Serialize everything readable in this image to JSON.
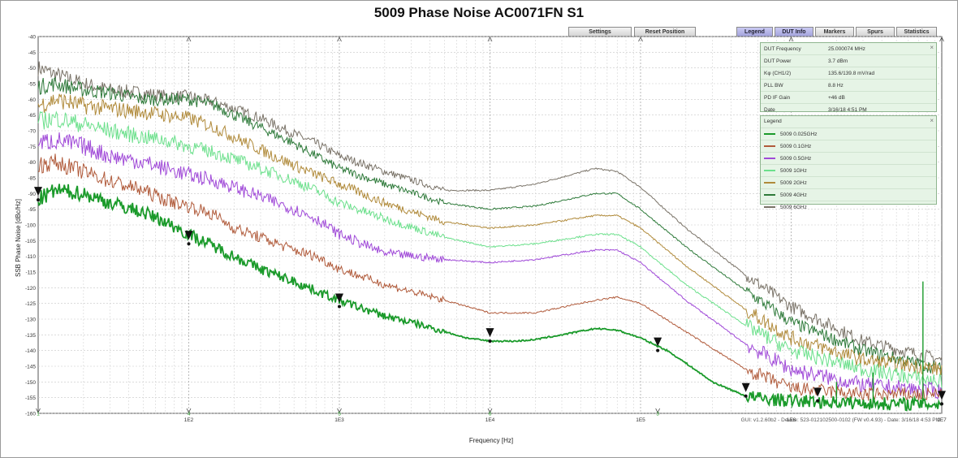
{
  "toolbar": {
    "buttons": [
      "Settings",
      "Reset Position",
      "Legend",
      "DUT Info",
      "Markers",
      "Spurs",
      "Statistics"
    ],
    "active": [
      "Legend",
      "DUT Info"
    ]
  },
  "dut_info": {
    "rows": [
      {
        "key": "DUT Frequency",
        "value": "25.000074 MHz"
      },
      {
        "key": "DUT Power",
        "value": "3.7 dBm"
      },
      {
        "key": "Kφ (CH1/2)",
        "value": "135.6/139.8 mV/rad"
      },
      {
        "key": "PLL BW",
        "value": "8.8 Hz"
      },
      {
        "key": "PD IF Gain",
        "value": "+46 dB"
      },
      {
        "key": "Date",
        "value": "3/16/18 4:51 PM"
      }
    ],
    "close": "×"
  },
  "legend_panel": {
    "title": "Legend",
    "close": "×"
  },
  "footer": "GUI: v1.2.60b2 - Device: 523-012102500-0102 (FW v0.4.93) - Date: 3/16/18 4:53 PM",
  "chart_data": {
    "type": "line",
    "title": "5009 Phase Noise  AC0071FN S1",
    "xlabel": "Frequency [Hz]",
    "ylabel": "SSB Phase Noise [dBc/Hz]",
    "x_scale": "log",
    "xlim": [
      10,
      10000000
    ],
    "ylim": [
      -160,
      -40
    ],
    "x_ticks": [
      {
        "value": 100,
        "label": "1E2"
      },
      {
        "value": 1000,
        "label": "1E3"
      },
      {
        "value": 10000,
        "label": "1E4"
      },
      {
        "value": 100000,
        "label": "1E5"
      },
      {
        "value": 1000000,
        "label": "1E6"
      },
      {
        "value": 10000000,
        "label": "1E7"
      }
    ],
    "y_ticks": [
      -40,
      -45,
      -50,
      -55,
      -60,
      -65,
      -70,
      -75,
      -80,
      -85,
      -90,
      -95,
      -100,
      -105,
      -110,
      -115,
      -120,
      -125,
      -130,
      -135,
      -140,
      -145,
      -150,
      -155,
      -160
    ],
    "grid": true,
    "legend_position": "top-right",
    "series": [
      {
        "name": "5009 0.025GHz",
        "color": "#1a9a2a",
        "noise": 2.6,
        "width": 1.8,
        "x": [
          10,
          13,
          20,
          30,
          50,
          70,
          100,
          150,
          200,
          300,
          500,
          700,
          1000,
          1500,
          2000,
          3000,
          5000,
          7000,
          10000,
          15000,
          20000,
          30000,
          50000,
          70000,
          100000,
          150000,
          200000,
          300000,
          500000,
          700000,
          1000000,
          2000000,
          5000000,
          10000000
        ],
        "y": [
          -92,
          -89,
          -90,
          -93,
          -96,
          -99,
          -103,
          -107,
          -110,
          -114,
          -118,
          -121,
          -124,
          -127,
          -129,
          -131,
          -134,
          -136,
          -137,
          -137,
          -136.5,
          -135,
          -133,
          -133.5,
          -136,
          -140,
          -144,
          -150,
          -154.5,
          -155.5,
          -156,
          -156.5,
          -157,
          -157
        ]
      },
      {
        "name": "5009 0.1GHz",
        "color": "#b05a3a",
        "noise": 2.8,
        "width": 1,
        "x": [
          10,
          13,
          20,
          30,
          50,
          70,
          100,
          150,
          200,
          300,
          500,
          700,
          1000,
          2000,
          5000,
          10000,
          20000,
          50000,
          70000,
          100000,
          200000,
          500000,
          1000000,
          3000000,
          10000000
        ],
        "y": [
          -81,
          -80,
          -83,
          -86,
          -89,
          -92,
          -94,
          -97,
          -101,
          -104,
          -108,
          -110,
          -114,
          -119,
          -124,
          -128,
          -128,
          -124,
          -123,
          -125,
          -134,
          -146,
          -152,
          -154,
          -154
        ]
      },
      {
        "name": "5009 0.5GHz",
        "color": "#a04ad8",
        "noise": 3.2,
        "width": 1,
        "x": [
          10,
          13,
          20,
          30,
          50,
          70,
          100,
          150,
          200,
          300,
          500,
          700,
          1000,
          2000,
          5000,
          10000,
          20000,
          50000,
          70000,
          100000,
          200000,
          500000,
          1000000,
          3000000,
          10000000
        ],
        "y": [
          -74,
          -73,
          -75,
          -78,
          -80,
          -82,
          -84,
          -86,
          -88,
          -91,
          -95,
          -98,
          -103,
          -109,
          -111,
          -112,
          -111,
          -108,
          -108,
          -112,
          -124,
          -138,
          -146,
          -151,
          -153
        ]
      },
      {
        "name": "5009 1GHz",
        "color": "#6ce08c",
        "noise": 3.0,
        "width": 1,
        "x": [
          10,
          13,
          20,
          30,
          50,
          70,
          100,
          150,
          200,
          300,
          500,
          700,
          1000,
          2000,
          5000,
          10000,
          20000,
          50000,
          70000,
          100000,
          200000,
          500000,
          1000000,
          3000000,
          10000000
        ],
        "y": [
          -67,
          -66,
          -68,
          -70,
          -72,
          -73,
          -75,
          -77,
          -79,
          -82,
          -86,
          -89,
          -93,
          -98,
          -104,
          -107,
          -106,
          -103,
          -103,
          -107,
          -119,
          -132,
          -140,
          -146,
          -150
        ]
      },
      {
        "name": "5009 2GHz",
        "color": "#b08a3a",
        "noise": 3.0,
        "width": 1,
        "x": [
          10,
          13,
          20,
          30,
          50,
          70,
          100,
          150,
          200,
          300,
          500,
          700,
          1000,
          2000,
          5000,
          10000,
          20000,
          50000,
          70000,
          100000,
          200000,
          500000,
          1000000,
          3000000,
          10000000
        ],
        "y": [
          -62,
          -60,
          -62,
          -63,
          -64,
          -65,
          -66,
          -69,
          -72,
          -76,
          -81,
          -84,
          -87,
          -93,
          -99,
          -101,
          -100,
          -97,
          -97,
          -101,
          -113,
          -127,
          -136,
          -143,
          -146
        ]
      },
      {
        "name": "5009 4GHz",
        "color": "#2e7a3a",
        "noise": 2.6,
        "width": 1,
        "x": [
          10,
          13,
          20,
          30,
          50,
          70,
          100,
          150,
          200,
          300,
          500,
          700,
          1000,
          2000,
          5000,
          10000,
          20000,
          50000,
          70000,
          100000,
          200000,
          500000,
          1000000,
          3000000,
          10000000
        ],
        "y": [
          -56,
          -55,
          -57,
          -58,
          -60,
          -60,
          -60,
          -62,
          -65,
          -69,
          -74,
          -78,
          -82,
          -87,
          -93,
          -95,
          -94,
          -90,
          -90,
          -95,
          -107,
          -121,
          -131,
          -140,
          -146
        ]
      },
      {
        "name": "5009 6GHz",
        "color": "#7a7368",
        "noise": 2.6,
        "width": 1,
        "x": [
          10,
          13,
          20,
          30,
          50,
          70,
          100,
          150,
          200,
          300,
          500,
          700,
          1000,
          2000,
          5000,
          10000,
          20000,
          50000,
          70000,
          100000,
          200000,
          500000,
          1000000,
          3000000,
          10000000
        ],
        "y": [
          -50,
          -52,
          -55,
          -57,
          -58,
          -59,
          -59,
          -61,
          -63,
          -66,
          -71,
          -74,
          -78,
          -83,
          -89,
          -89,
          -87,
          -82,
          -83,
          -88,
          -101,
          -116,
          -126,
          -137,
          -143
        ]
      }
    ],
    "spurs": [
      {
        "x": 2000000,
        "y": -150
      },
      {
        "x": 7500000,
        "y": -118
      },
      {
        "x": 3500000,
        "y": -147
      }
    ],
    "markers": [
      {
        "x": 10,
        "y": -92
      },
      {
        "x": 100,
        "y": -106
      },
      {
        "x": 1000,
        "y": -126
      },
      {
        "x": 10000,
        "y": -137
      },
      {
        "x": 130000,
        "y": -140
      },
      {
        "x": 500000,
        "y": -154.5
      },
      {
        "x": 1500000,
        "y": -156
      },
      {
        "x": 10000000,
        "y": -157
      }
    ],
    "bottom_ticks": [
      {
        "x": 10,
        "label": "1"
      },
      {
        "x": 100,
        "label": "4"
      },
      {
        "x": 1000,
        "label": "5"
      },
      {
        "x": 10000,
        "label": "6"
      },
      {
        "x": 130000,
        "label": "3"
      }
    ]
  }
}
